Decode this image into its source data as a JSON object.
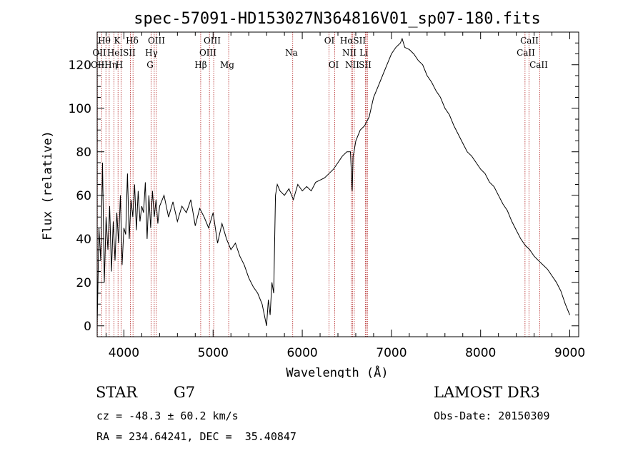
{
  "chart_data": {
    "type": "line",
    "title": "spec-57091-HD153027N364816V01_sp07-180.fits",
    "xlabel": "Wavelength (Å)",
    "ylabel": "Flux (relative)",
    "xlim": [
      3700,
      9100
    ],
    "ylim": [
      -5,
      135
    ],
    "xticks": [
      4000,
      5000,
      6000,
      7000,
      8000,
      9000
    ],
    "yticks": [
      0,
      20,
      40,
      60,
      80,
      100,
      120
    ],
    "grid": false,
    "series": [
      {
        "name": "flux",
        "x": [
          3700,
          3720,
          3740,
          3760,
          3780,
          3800,
          3820,
          3840,
          3860,
          3880,
          3900,
          3920,
          3940,
          3960,
          3980,
          4000,
          4020,
          4040,
          4060,
          4080,
          4100,
          4120,
          4140,
          4160,
          4180,
          4200,
          4220,
          4240,
          4260,
          4280,
          4300,
          4320,
          4340,
          4360,
          4380,
          4400,
          4450,
          4500,
          4550,
          4600,
          4650,
          4700,
          4750,
          4800,
          4850,
          4900,
          4950,
          5000,
          5050,
          5100,
          5150,
          5200,
          5250,
          5300,
          5350,
          5400,
          5450,
          5500,
          5550,
          5600,
          5620,
          5640,
          5660,
          5680,
          5700,
          5720,
          5750,
          5800,
          5850,
          5900,
          5950,
          6000,
          6050,
          6100,
          6150,
          6200,
          6250,
          6300,
          6350,
          6400,
          6450,
          6500,
          6540,
          6560,
          6570,
          6580,
          6600,
          6650,
          6700,
          6750,
          6800,
          6850,
          6900,
          6950,
          7000,
          7050,
          7100,
          7120,
          7150,
          7200,
          7250,
          7300,
          7350,
          7400,
          7450,
          7500,
          7550,
          7600,
          7650,
          7700,
          7750,
          7800,
          7850,
          7900,
          7950,
          8000,
          8050,
          8100,
          8150,
          8200,
          8250,
          8300,
          8350,
          8400,
          8450,
          8500,
          8550,
          8600,
          8650,
          8700,
          8750,
          8800,
          8850,
          8900,
          8950,
          9000
        ],
        "y": [
          0,
          45,
          30,
          75,
          20,
          50,
          35,
          55,
          25,
          48,
          30,
          52,
          38,
          60,
          28,
          45,
          42,
          70,
          40,
          58,
          50,
          65,
          44,
          62,
          48,
          55,
          52,
          66,
          40,
          60,
          45,
          62,
          50,
          58,
          47,
          55,
          60,
          50,
          57,
          48,
          55,
          52,
          58,
          46,
          54,
          50,
          45,
          52,
          38,
          47,
          40,
          35,
          38,
          32,
          28,
          22,
          18,
          15,
          10,
          0,
          12,
          5,
          20,
          15,
          60,
          65,
          62,
          60,
          63,
          58,
          65,
          62,
          64,
          62,
          66,
          67,
          68,
          70,
          72,
          75,
          78,
          80,
          80,
          62,
          78,
          80,
          85,
          90,
          92,
          96,
          105,
          110,
          115,
          120,
          125,
          128,
          130,
          132,
          128,
          127,
          125,
          122,
          120,
          115,
          112,
          108,
          105,
          100,
          97,
          92,
          88,
          84,
          80,
          78,
          75,
          72,
          70,
          66,
          64,
          60,
          56,
          53,
          48,
          44,
          40,
          37,
          35,
          32,
          30,
          28,
          26,
          23,
          20,
          16,
          10,
          5
        ]
      }
    ],
    "spectral_lines": [
      {
        "w": 3703,
        "labels": [
          "Hθ",
          "OII",
          "OIII"
        ]
      },
      {
        "w": 3750,
        "labels": [
          "Hη"
        ]
      },
      {
        "w": 3798,
        "labels": [
          "Hθ"
        ]
      },
      {
        "w": 3835,
        "labels": [
          "HeI"
        ]
      },
      {
        "w": 3889,
        "labels": [
          "Hη"
        ]
      },
      {
        "w": 3934,
        "labels": [
          "K"
        ]
      },
      {
        "w": 3969,
        "labels": [
          "H"
        ]
      },
      {
        "w": 4072,
        "labels": [
          "SII"
        ]
      },
      {
        "w": 4102,
        "labels": [
          "Hδ"
        ]
      },
      {
        "w": 4304,
        "labels": [
          "G"
        ]
      },
      {
        "w": 4340,
        "labels": [
          "Hγ"
        ]
      },
      {
        "w": 4363,
        "labels": [
          "OIII"
        ]
      },
      {
        "w": 4861,
        "labels": [
          "Hβ"
        ]
      },
      {
        "w": 4959,
        "labels": [
          "OIII"
        ]
      },
      {
        "w": 5007,
        "labels": [
          "OIII"
        ]
      },
      {
        "w": 5175,
        "labels": [
          "Mg"
        ]
      },
      {
        "w": 5893,
        "labels": [
          "Na"
        ]
      },
      {
        "w": 6300,
        "labels": [
          "OI"
        ]
      },
      {
        "w": 6364,
        "labels": [
          "OI"
        ]
      },
      {
        "w": 6548,
        "labels": [
          "NII"
        ]
      },
      {
        "w": 6563,
        "labels": [
          "Hα"
        ]
      },
      {
        "w": 6583,
        "labels": [
          "NII"
        ]
      },
      {
        "w": 6708,
        "labels": [
          "Li"
        ]
      },
      {
        "w": 6716,
        "labels": [
          "SII"
        ]
      },
      {
        "w": 6731,
        "labels": [
          "SII"
        ]
      },
      {
        "w": 8498,
        "labels": [
          "CaII"
        ]
      },
      {
        "w": 8542,
        "labels": [
          "CaII"
        ]
      },
      {
        "w": 8662,
        "labels": [
          "CaII"
        ]
      }
    ],
    "line_label_rows": [
      [
        "Hθ",
        "K",
        "Hδ",
        "OIII",
        "OIII",
        "OI",
        "HαSII",
        "CaII"
      ],
      [
        "OII",
        "HeI",
        "SII",
        "Hγ",
        "OIII",
        "Na",
        "NII",
        "Li",
        "CaII"
      ],
      [
        "OIII",
        "Hη",
        "H",
        "G",
        "Hβ",
        "Mg",
        "OI",
        "NII",
        "SII",
        "CaII"
      ]
    ]
  },
  "info": {
    "object_class": "STAR",
    "subclass": "G7",
    "survey": "LAMOST DR3",
    "redshift": "cz = -48.3 ± 60.2 km/s",
    "obs_date": "Obs-Date: 20150309",
    "coords": "RA = 234.64241, DEC =  35.40847"
  },
  "colors": {
    "axes": "#000000",
    "spectrum": "#000000",
    "lines": "#b22222"
  }
}
